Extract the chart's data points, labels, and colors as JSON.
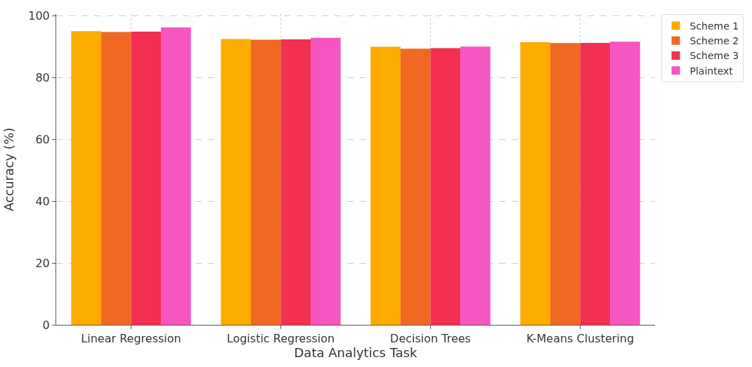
{
  "chart_data": {
    "type": "bar",
    "xlabel": "Data Analytics Task",
    "ylabel": "Accuracy (%)",
    "categories": [
      "Linear Regression",
      "Logistic Regression",
      "Decision Trees",
      "K-Means Clustering"
    ],
    "series": [
      {
        "name": "Scheme 1",
        "color": "#fdab00",
        "values": [
          95.0,
          92.4,
          89.9,
          91.4
        ]
      },
      {
        "name": "Scheme 2",
        "color": "#f06822",
        "values": [
          94.7,
          92.2,
          89.3,
          91.1
        ]
      },
      {
        "name": "Scheme 3",
        "color": "#f23051",
        "values": [
          94.8,
          92.3,
          89.5,
          91.2
        ]
      },
      {
        "name": "Plaintext",
        "color": "#f656bf",
        "values": [
          96.2,
          92.8,
          90.0,
          91.6
        ]
      }
    ],
    "ylim": [
      0,
      100.5
    ],
    "yticks": [
      0,
      20,
      40,
      60,
      80,
      100
    ],
    "grid": true,
    "legend": "top right"
  }
}
